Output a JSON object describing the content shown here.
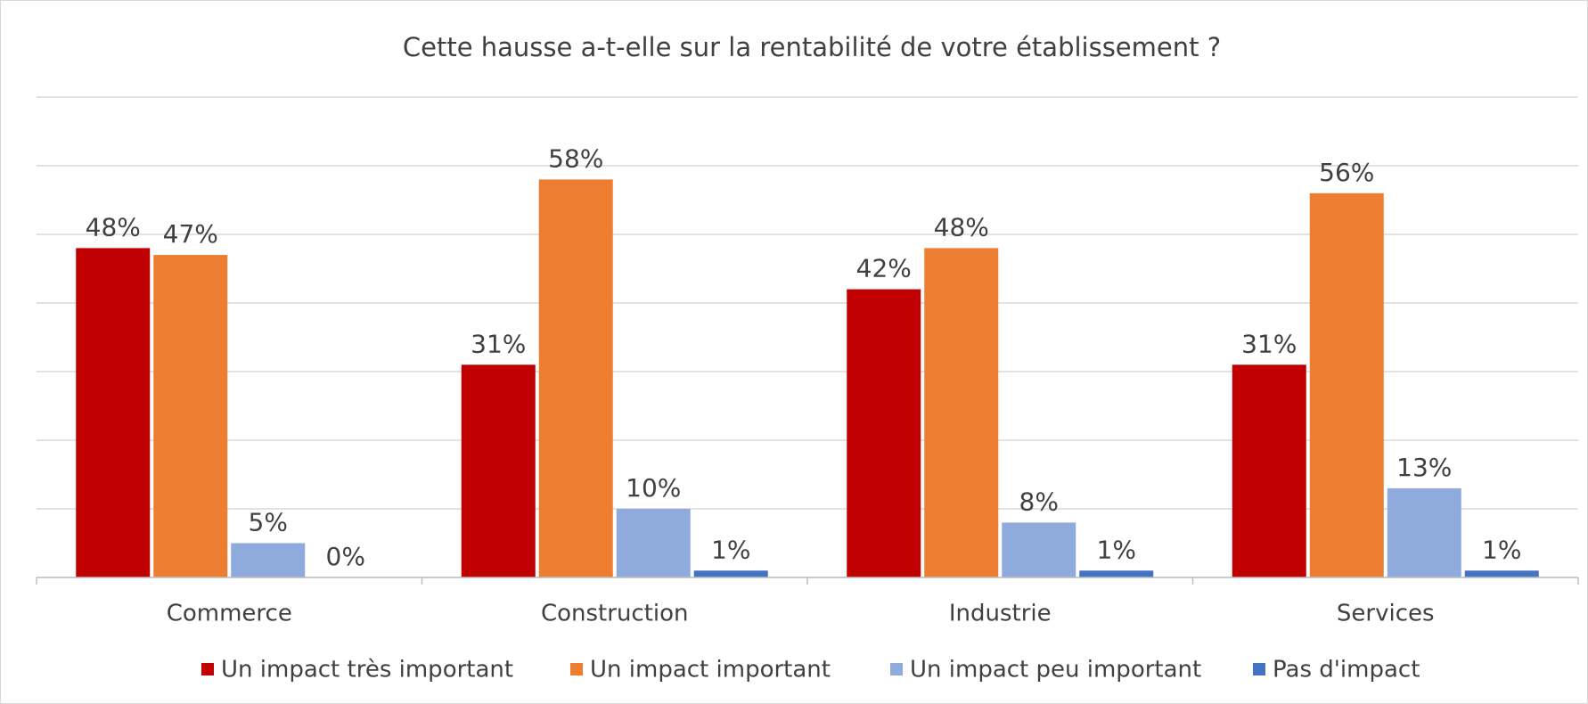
{
  "chart_data": {
    "type": "bar",
    "title": "Cette hausse a-t-elle sur la rentabilité de votre établissement ?",
    "categories": [
      "Commerce",
      "Construction",
      "Industrie",
      "Services"
    ],
    "series": [
      {
        "name": "Un impact très important",
        "color": "#c00000",
        "values": [
          48,
          31,
          42,
          31
        ],
        "value_labels": [
          "48%",
          "31%",
          "42%",
          "31%"
        ]
      },
      {
        "name": "Un impact important",
        "color": "#ed7d31",
        "values": [
          47,
          58,
          48,
          56
        ],
        "value_labels": [
          "47%",
          "58%",
          "48%",
          "56%"
        ]
      },
      {
        "name": "Un impact peu important",
        "color": "#8faadc",
        "values": [
          5,
          10,
          8,
          13
        ],
        "value_labels": [
          "5%",
          "10%",
          "8%",
          "13%"
        ]
      },
      {
        "name": "Pas d'impact",
        "color": "#4472c4",
        "values": [
          0,
          1,
          1,
          1
        ],
        "value_labels": [
          "0%",
          "1%",
          "1%",
          "1%"
        ]
      }
    ],
    "ylim": [
      0,
      70
    ],
    "yticks": [
      0,
      10,
      20,
      30,
      40,
      50,
      60,
      70
    ],
    "grid": true,
    "legend": "bottom"
  }
}
